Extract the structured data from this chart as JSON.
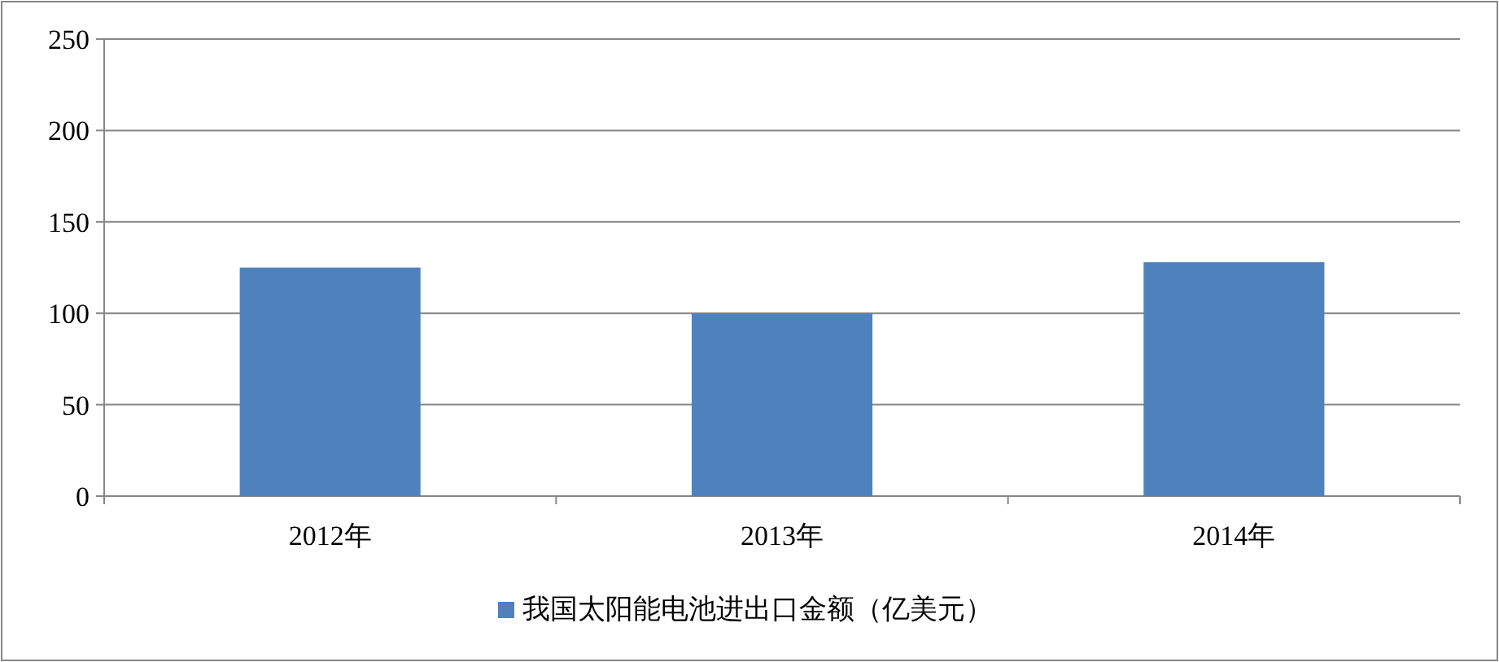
{
  "chart_data": {
    "type": "bar",
    "categories": [
      "2012年",
      "2013年",
      "2014年"
    ],
    "series": [
      {
        "name": "我国太阳能电池进出口金额（亿美元）",
        "color": "#4f81bd",
        "values": [
          125,
          100,
          128
        ]
      }
    ],
    "ylim": [
      0,
      250
    ],
    "yticks": [
      0,
      50,
      100,
      150,
      200,
      250
    ],
    "grid": "y",
    "legend": "bottom"
  }
}
